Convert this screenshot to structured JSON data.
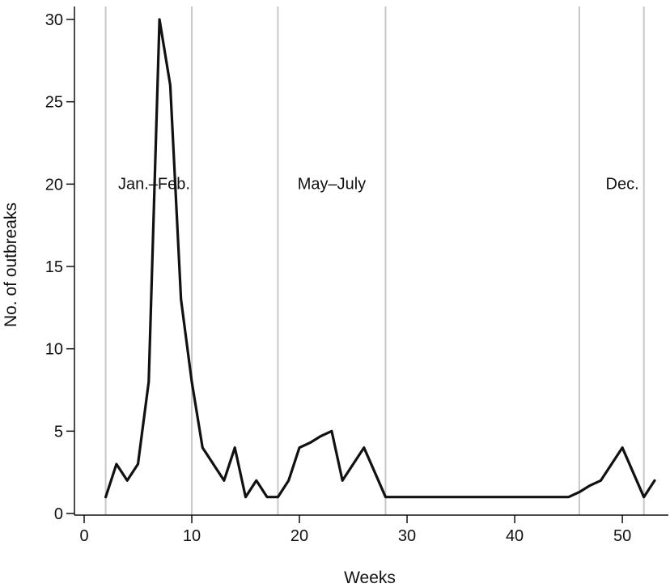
{
  "chart_data": {
    "type": "line",
    "title": "",
    "xlabel": "Weeks",
    "ylabel": "No. of outbreaks",
    "xlim": [
      0,
      53
    ],
    "ylim": [
      0,
      30
    ],
    "x_ticks": [
      0,
      10,
      20,
      30,
      40,
      50
    ],
    "y_ticks": [
      0,
      5,
      10,
      15,
      20,
      25,
      30
    ],
    "grid": false,
    "series": [
      {
        "color": "#111111",
        "points": [
          [
            2,
            1
          ],
          [
            3,
            3
          ],
          [
            4,
            2
          ],
          [
            5,
            3
          ],
          [
            6,
            8
          ],
          [
            7,
            30
          ],
          [
            8,
            26
          ],
          [
            9,
            13
          ],
          [
            10,
            8
          ],
          [
            11,
            4
          ],
          [
            12,
            3
          ],
          [
            13,
            2
          ],
          [
            14,
            4
          ],
          [
            15,
            1
          ],
          [
            16,
            2
          ],
          [
            17,
            1
          ],
          [
            18,
            1
          ],
          [
            19,
            2
          ],
          [
            20,
            4
          ],
          [
            21,
            4.3
          ],
          [
            22,
            4.7
          ],
          [
            23,
            5
          ],
          [
            24,
            2
          ],
          [
            25,
            3
          ],
          [
            26,
            4
          ],
          [
            27,
            2.5
          ],
          [
            28,
            1
          ],
          [
            29,
            1
          ],
          [
            30,
            1
          ],
          [
            35,
            1
          ],
          [
            40,
            1
          ],
          [
            45,
            1
          ],
          [
            46,
            1.3
          ],
          [
            47,
            1.7
          ],
          [
            48,
            2
          ],
          [
            49,
            3
          ],
          [
            50,
            4
          ],
          [
            51,
            2.5
          ],
          [
            52,
            1
          ],
          [
            53,
            2
          ]
        ]
      }
    ],
    "reference_lines": {
      "x": [
        2,
        10,
        18,
        28,
        46,
        52
      ],
      "color": "#c8c8c8"
    },
    "annotations": [
      {
        "text": "Jan.–Feb.",
        "x": 6.5,
        "y": 19.7
      },
      {
        "text": "May–July",
        "x": 23,
        "y": 19.7
      },
      {
        "text": "Dec.",
        "x": 50,
        "y": 19.7
      }
    ]
  }
}
